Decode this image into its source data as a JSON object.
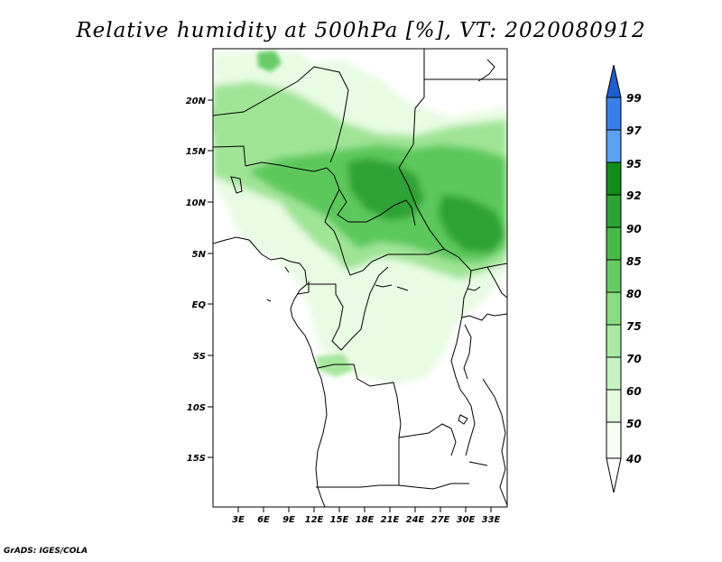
{
  "title": "Relative humidity at 500hPa [%], VT: 2020080912",
  "credit": "GrADS: IGES/COLA",
  "lat_labels": [
    "20N",
    "15N",
    "10N",
    "5N",
    "EQ",
    "5S",
    "10S",
    "15S"
  ],
  "lon_labels": [
    "3E",
    "6E",
    "9E",
    "12E",
    "15E",
    "18E",
    "21E",
    "24E",
    "27E",
    "30E",
    "33E"
  ],
  "colorbar": {
    "levels": [
      "99",
      "97",
      "95",
      "92",
      "90",
      "85",
      "80",
      "75",
      "70",
      "60",
      "50",
      "40"
    ],
    "colors": [
      "#1e5fcf",
      "#3a7fe8",
      "#5aa2f0",
      "#138c1a",
      "#2ca332",
      "#48ba4a",
      "#66cc62",
      "#89db84",
      "#aae8a4",
      "#c7f2c2",
      "#e2fadd",
      "#f4fff2"
    ]
  },
  "map": {
    "extent": {
      "lon": [
        0,
        35
      ],
      "lat": [
        -20,
        25
      ]
    },
    "humidity_colors": {
      "light": "#e8fbe3",
      "mid": "#9fe495",
      "high": "#5cc85b",
      "max": "#2ea234"
    }
  }
}
